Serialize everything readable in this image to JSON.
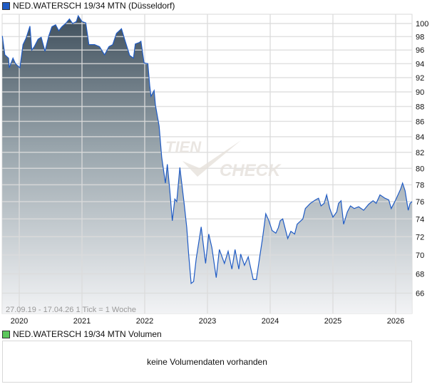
{
  "price_legend": {
    "label": "NED.WATERSCH 19/34 MTN (Düsseldorf)",
    "color": "#1f5bc4"
  },
  "volume_legend": {
    "label": "NED.WATERSCH 19/34 MTN Volumen",
    "color": "#5cc85c"
  },
  "volume_panel": {
    "message": "keine Volumendaten vorhanden"
  },
  "watermark": {
    "line1": "TIEN",
    "line2": "CHECK"
  },
  "chart_data": {
    "type": "area",
    "title": "NED.WATERSCH 19/34 MTN (Düsseldorf)",
    "info_text": "27.09.19 - 17.04.26   1 Tick = 1 Woche",
    "y_scale": "log",
    "ylim": [
      64,
      102
    ],
    "xlim": [
      2019.73,
      2026.26
    ],
    "y_ticks": [
      66,
      68,
      70,
      72,
      74,
      76,
      78,
      80,
      82,
      84,
      86,
      88,
      90,
      92,
      94,
      96,
      98,
      100
    ],
    "x_ticks": [
      {
        "label": "2020",
        "value": 2020
      },
      {
        "label": "2021",
        "value": 2021
      },
      {
        "label": "2022",
        "value": 2022
      },
      {
        "label": "2023",
        "value": 2023
      },
      {
        "label": "2024",
        "value": 2024
      },
      {
        "label": "2025",
        "value": 2025
      },
      {
        "label": "2026",
        "value": 2026
      }
    ],
    "grid": true,
    "y_axis_position": "right",
    "line_color": "#1f5bc4",
    "fill_top_color": "#3f4f5c",
    "fill_bottom_color": "#f2f3f5",
    "series": [
      {
        "x": [
          2019.73,
          2019.77,
          2019.83,
          2019.84,
          2019.9,
          2019.94,
          2020.01,
          2020.06,
          2020.11,
          2020.17,
          2020.2,
          2020.24,
          2020.3,
          2020.35,
          2020.41,
          2020.47,
          2020.52,
          2020.58,
          2020.63,
          2020.68,
          2020.74,
          2020.8,
          2020.85,
          2020.91,
          2020.94,
          2021.0,
          2021.06,
          2021.11,
          2021.2,
          2021.28,
          2021.36,
          2021.43,
          2021.49,
          2021.55,
          2021.63,
          2021.68,
          2021.76,
          2021.82,
          2021.85,
          2021.91,
          2021.94,
          2021.99,
          2022.05,
          2022.08,
          2022.1,
          2022.15,
          2022.17,
          2022.23,
          2022.27,
          2022.33,
          2022.36,
          2022.4,
          2022.44,
          2022.48,
          2022.51,
          2022.56,
          2022.59,
          2022.63,
          2022.67,
          2022.7,
          2022.74,
          2022.78,
          2022.82,
          2022.9,
          2022.97,
          2023.02,
          2023.07,
          2023.14,
          2023.19,
          2023.27,
          2023.33,
          2023.39,
          2023.44,
          2023.5,
          2023.53,
          2023.59,
          2023.65,
          2023.73,
          2023.78,
          2023.84,
          2023.88,
          2023.93,
          2023.98,
          2024.03,
          2024.09,
          2024.13,
          2024.16,
          2024.2,
          2024.28,
          2024.33,
          2024.39,
          2024.43,
          2024.52,
          2024.56,
          2024.64,
          2024.72,
          2024.77,
          2024.81,
          2024.86,
          2024.9,
          2024.95,
          2025.0,
          2025.06,
          2025.09,
          2025.13,
          2025.17,
          2025.23,
          2025.28,
          2025.34,
          2025.41,
          2025.49,
          2025.57,
          2025.64,
          2025.69,
          2025.75,
          2025.83,
          2025.89,
          2025.93,
          2026.0,
          2026.08,
          2026.11,
          2026.15,
          2026.2,
          2026.23,
          2026.26
        ],
        "y": [
          98.1,
          95.3,
          94.8,
          93.4,
          94.8,
          94.0,
          93.4,
          96.8,
          97.8,
          99.6,
          96.0,
          96.5,
          97.6,
          97.9,
          95.8,
          98.1,
          99.5,
          99.8,
          98.9,
          99.5,
          100.0,
          100.7,
          100.0,
          100.3,
          101.2,
          100.3,
          100.1,
          96.8,
          96.8,
          96.5,
          95.3,
          96.5,
          96.8,
          98.5,
          99.2,
          97.6,
          95.2,
          94.8,
          96.9,
          97.1,
          97.3,
          94.1,
          94.0,
          90.9,
          89.4,
          90.2,
          88.2,
          85.4,
          81.4,
          78.2,
          80.5,
          77.3,
          73.8,
          76.3,
          76.0,
          80.1,
          78.2,
          75.7,
          73.0,
          70.1,
          67.0,
          67.2,
          69.6,
          73.1,
          69.1,
          72.3,
          70.8,
          67.6,
          70.6,
          69.1,
          70.4,
          68.5,
          70.6,
          68.5,
          70.1,
          68.9,
          69.8,
          67.4,
          67.4,
          70.1,
          71.9,
          74.6,
          73.8,
          72.7,
          72.4,
          73.0,
          73.8,
          74.0,
          71.8,
          72.6,
          72.3,
          73.4,
          74.0,
          75.2,
          75.8,
          76.2,
          76.4,
          75.5,
          75.8,
          76.8,
          75.2,
          74.2,
          74.8,
          75.8,
          76.1,
          73.4,
          74.8,
          75.5,
          75.2,
          75.4,
          75.0,
          75.7,
          76.1,
          75.8,
          76.8,
          76.4,
          76.2,
          75.2,
          76.2,
          77.5,
          78.2,
          77.3,
          75.0,
          75.8,
          76.0
        ]
      }
    ]
  }
}
